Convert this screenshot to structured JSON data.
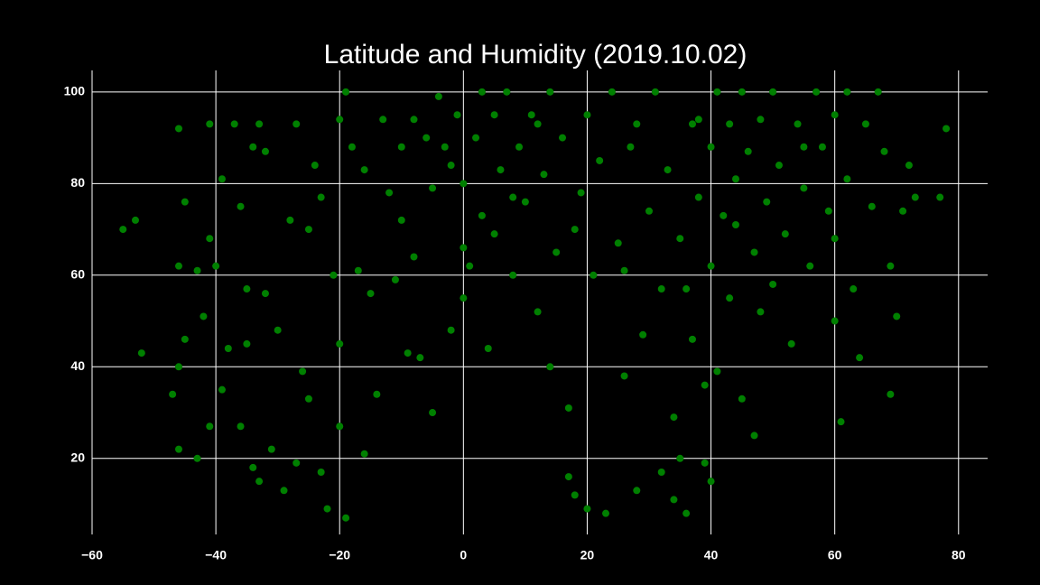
{
  "chart_data": {
    "type": "scatter",
    "title": "Latitude and Humidity (2019.10.02)",
    "color": "#008000",
    "grid": true,
    "xlim": [
      -60,
      84.7
    ],
    "ylim": [
      3.4,
      104.7
    ],
    "xticks": [
      {
        "value": -60,
        "label": "−60"
      },
      {
        "value": -40,
        "label": "−40"
      },
      {
        "value": -20,
        "label": "−20"
      },
      0,
      20,
      40,
      60,
      80
    ],
    "yticks": [
      20,
      40,
      60,
      80,
      100
    ],
    "x": [
      -55,
      -53,
      -52,
      -47,
      -46,
      -46,
      -46,
      -45,
      -45,
      -46,
      -43,
      -43,
      -42,
      -41,
      -41,
      -41,
      -40,
      -39,
      -39,
      -38,
      -37,
      -36,
      -36,
      -35,
      -35,
      -34,
      -34,
      -33,
      -33,
      -32,
      -32,
      -31,
      -30,
      -29,
      -28,
      -27,
      -27,
      -26,
      -25,
      -25,
      -24,
      -23,
      -23,
      -22,
      -21,
      -20,
      -20,
      -20,
      -19,
      -19,
      -18,
      -17,
      -16,
      -16,
      -15,
      -14,
      -13,
      -12,
      -11,
      -10,
      -9,
      -8,
      -8,
      -7,
      -6,
      -5,
      -5,
      -4,
      -3,
      -2,
      -1,
      0,
      0,
      0,
      1,
      2,
      3,
      3,
      4,
      5,
      6,
      7,
      8,
      9,
      10,
      11,
      12,
      13,
      14,
      14,
      15,
      16,
      17,
      17,
      18,
      19,
      20,
      20,
      21,
      22,
      23,
      24,
      25,
      26,
      27,
      28,
      29,
      30,
      31,
      32,
      32,
      33,
      34,
      34,
      35,
      35,
      36,
      37,
      37,
      38,
      39,
      39,
      40,
      40,
      40,
      41,
      41,
      42,
      43,
      43,
      44,
      45,
      45,
      46,
      47,
      47,
      48,
      49,
      50,
      50,
      51,
      52,
      53,
      54,
      55,
      56,
      57,
      58,
      59,
      60,
      60,
      61,
      62,
      62,
      63,
      64,
      65,
      66,
      67,
      68,
      69,
      69,
      70,
      71,
      72,
      73,
      77,
      78,
      28,
      12,
      -10,
      5,
      48,
      55,
      60,
      38,
      44,
      26,
      18,
      8,
      -2,
      36
    ],
    "values": [
      70,
      72,
      43,
      34,
      22,
      92,
      62,
      46,
      76,
      40,
      20,
      61,
      51,
      93,
      68,
      27,
      62,
      81,
      35,
      44,
      93,
      27,
      75,
      57,
      45,
      88,
      18,
      93,
      15,
      56,
      87,
      22,
      48,
      13,
      72,
      93,
      19,
      39,
      70,
      33,
      84,
      17,
      77,
      9,
      60,
      94,
      27,
      45,
      100,
      7,
      88,
      61,
      21,
      83,
      56,
      34,
      94,
      78,
      59,
      88,
      43,
      94,
      64,
      42,
      90,
      30,
      79,
      99,
      88,
      48,
      95,
      80,
      66,
      55,
      62,
      90,
      100,
      73,
      44,
      95,
      83,
      100,
      60,
      88,
      76,
      95,
      52,
      82,
      40,
      100,
      65,
      90,
      31,
      16,
      12,
      78,
      95,
      9,
      60,
      85,
      8,
      100,
      67,
      38,
      88,
      13,
      47,
      74,
      100,
      17,
      57,
      83,
      11,
      29,
      68,
      20,
      8,
      93,
      46,
      77,
      36,
      19,
      88,
      15,
      62,
      100,
      39,
      73,
      93,
      55,
      81,
      100,
      33,
      87,
      25,
      65,
      94,
      76,
      58,
      100,
      84,
      69,
      45,
      93,
      79,
      62,
      100,
      88,
      74,
      95,
      50,
      28,
      100,
      81,
      57,
      42,
      93,
      75,
      100,
      87,
      34,
      62,
      51,
      74,
      84,
      77,
      77,
      92,
      93,
      93,
      72,
      69,
      52,
      88,
      68,
      94,
      71,
      61,
      70,
      77,
      84,
      57
    ]
  }
}
